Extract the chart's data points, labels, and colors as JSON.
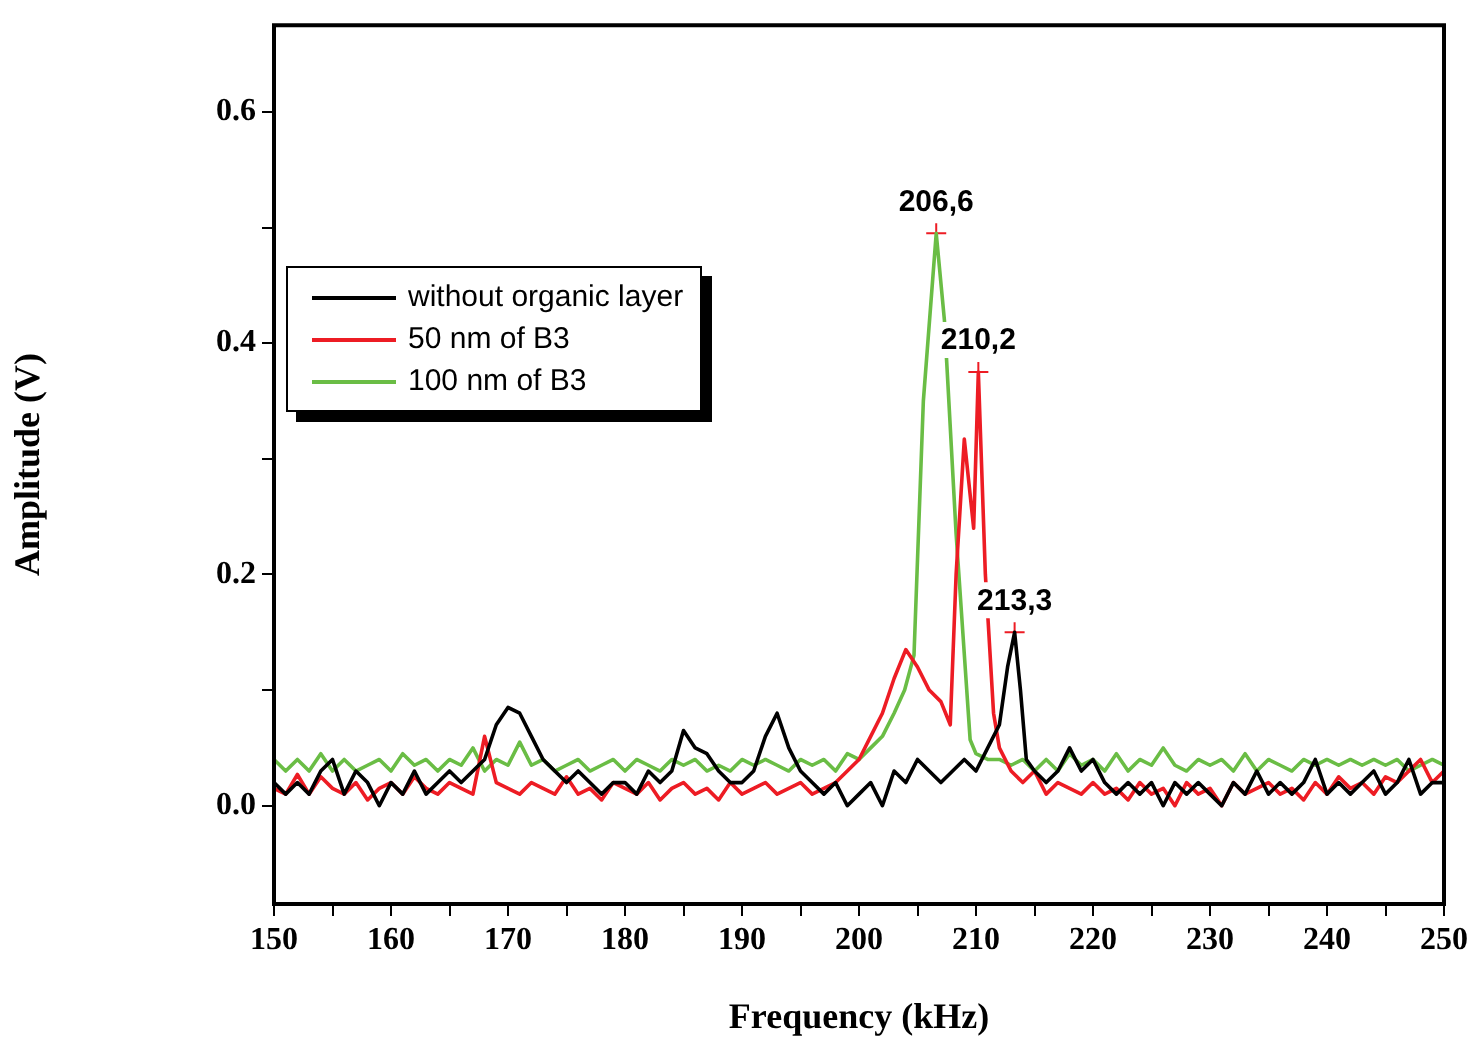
{
  "chart_data": {
    "type": "line",
    "xlabel": "Frequency (kHz)",
    "ylabel": "Amplitude (V)",
    "xlim": [
      150,
      250
    ],
    "xticks": [
      150,
      {
        "value": 155,
        "label": null
      },
      160,
      {
        "value": 165,
        "label": null
      },
      170,
      {
        "value": 175,
        "label": null
      },
      180,
      {
        "value": 185,
        "label": null
      },
      190,
      {
        "value": 195,
        "label": null
      },
      200,
      {
        "value": 205,
        "label": null
      },
      210,
      {
        "value": 215,
        "label": null
      },
      220,
      {
        "value": 225,
        "label": null
      },
      230,
      {
        "value": 235,
        "label": null
      },
      240,
      {
        "value": 245,
        "label": null
      },
      250
    ],
    "ylim": [
      -0.085,
      0.675
    ],
    "yticks": [
      {
        "value": 0,
        "label": "0.0"
      },
      {
        "value": 0.1,
        "label": null
      },
      {
        "value": 0.2,
        "label": "0.2"
      },
      {
        "value": 0.3,
        "label": null
      },
      {
        "value": 0.4,
        "label": "0.4"
      },
      {
        "value": 0.5,
        "label": null
      },
      {
        "value": 0.6,
        "label": "0.6"
      }
    ],
    "grid": false,
    "legend": "top left",
    "marker": "none",
    "line_style": "solid",
    "annotations": [
      {
        "text": "206,6",
        "x": 206.6,
        "y": 0.495
      },
      {
        "text": "210,2",
        "x": 210.2,
        "y": 0.375
      },
      {
        "text": "213,3",
        "x": 213.3,
        "y": 0.15
      }
    ],
    "series": [
      {
        "name": "without organic layer",
        "color": "#000000",
        "x": [
          150,
          151,
          152,
          153,
          154,
          155,
          156,
          157,
          158,
          159,
          160,
          161,
          162,
          163,
          164,
          165,
          166,
          167,
          168,
          169,
          170,
          171,
          172,
          173,
          174,
          175,
          176,
          177,
          178,
          179,
          180,
          181,
          182,
          183,
          184,
          185,
          186,
          187,
          188,
          189,
          190,
          191,
          192,
          193,
          194,
          195,
          196,
          197,
          198,
          199,
          200,
          201,
          202,
          203,
          204,
          205,
          206,
          207,
          208,
          209,
          210,
          211,
          212,
          212.7,
          213.3,
          213.8,
          214.3,
          215,
          216,
          217,
          218,
          219,
          220,
          221,
          222,
          223,
          224,
          225,
          226,
          227,
          228,
          229,
          230,
          231,
          232,
          233,
          234,
          235,
          236,
          237,
          238,
          239,
          240,
          241,
          242,
          243,
          244,
          245,
          246,
          247,
          248,
          249,
          250
        ],
        "values": [
          0.02,
          0.01,
          0.02,
          0.01,
          0.03,
          0.04,
          0.01,
          0.03,
          0.02,
          0.0,
          0.02,
          0.01,
          0.03,
          0.01,
          0.02,
          0.03,
          0.02,
          0.03,
          0.04,
          0.07,
          0.085,
          0.08,
          0.06,
          0.04,
          0.03,
          0.02,
          0.03,
          0.02,
          0.01,
          0.02,
          0.02,
          0.01,
          0.03,
          0.02,
          0.03,
          0.065,
          0.05,
          0.045,
          0.03,
          0.02,
          0.02,
          0.03,
          0.06,
          0.08,
          0.05,
          0.03,
          0.02,
          0.01,
          0.02,
          0.0,
          0.01,
          0.02,
          0.0,
          0.03,
          0.02,
          0.04,
          0.03,
          0.02,
          0.03,
          0.04,
          0.03,
          0.05,
          0.07,
          0.12,
          0.15,
          0.1,
          0.04,
          0.03,
          0.02,
          0.03,
          0.05,
          0.03,
          0.04,
          0.02,
          0.01,
          0.02,
          0.01,
          0.02,
          0.0,
          0.02,
          0.01,
          0.02,
          0.01,
          0.0,
          0.02,
          0.01,
          0.03,
          0.01,
          0.02,
          0.01,
          0.02,
          0.04,
          0.01,
          0.02,
          0.01,
          0.02,
          0.03,
          0.01,
          0.02,
          0.04,
          0.01,
          0.02,
          0.02
        ]
      },
      {
        "name": "50 nm of B3",
        "color": "#ed1c24",
        "x": [
          150,
          151,
          152,
          153,
          154,
          155,
          156,
          157,
          158,
          159,
          160,
          161,
          162,
          163,
          164,
          165,
          166,
          167,
          168,
          169,
          170,
          171,
          172,
          173,
          174,
          175,
          176,
          177,
          178,
          179,
          180,
          181,
          182,
          183,
          184,
          185,
          186,
          187,
          188,
          189,
          190,
          191,
          192,
          193,
          194,
          195,
          196,
          197,
          198,
          199,
          200,
          201,
          202,
          203,
          204,
          205,
          206,
          207,
          207.8,
          208.3,
          209,
          209.8,
          210.2,
          210.8,
          211.5,
          212,
          213,
          214,
          215,
          216,
          217,
          218,
          219,
          220,
          221,
          222,
          223,
          224,
          225,
          226,
          227,
          228,
          229,
          230,
          231,
          232,
          233,
          234,
          235,
          236,
          237,
          238,
          239,
          240,
          241,
          242,
          243,
          244,
          245,
          246,
          247,
          248,
          249,
          250
        ],
        "values": [
          0.015,
          0.01,
          0.027,
          0.01,
          0.025,
          0.015,
          0.01,
          0.02,
          0.005,
          0.015,
          0.02,
          0.01,
          0.025,
          0.015,
          0.01,
          0.02,
          0.015,
          0.01,
          0.06,
          0.02,
          0.015,
          0.01,
          0.02,
          0.015,
          0.01,
          0.025,
          0.01,
          0.015,
          0.005,
          0.02,
          0.015,
          0.01,
          0.02,
          0.005,
          0.015,
          0.02,
          0.01,
          0.015,
          0.005,
          0.02,
          0.01,
          0.015,
          0.02,
          0.01,
          0.015,
          0.02,
          0.01,
          0.015,
          0.02,
          0.03,
          0.04,
          0.06,
          0.08,
          0.11,
          0.135,
          0.12,
          0.1,
          0.09,
          0.07,
          0.2,
          0.317,
          0.24,
          0.375,
          0.2,
          0.08,
          0.05,
          0.03,
          0.02,
          0.03,
          0.01,
          0.02,
          0.015,
          0.01,
          0.02,
          0.01,
          0.015,
          0.005,
          0.02,
          0.01,
          0.015,
          0.0,
          0.02,
          0.01,
          0.015,
          0.0,
          0.02,
          0.01,
          0.015,
          0.02,
          0.01,
          0.015,
          0.005,
          0.02,
          0.01,
          0.025,
          0.015,
          0.02,
          0.01,
          0.025,
          0.02,
          0.03,
          0.04,
          0.02,
          0.03
        ]
      },
      {
        "name": "100 nm of B3",
        "color": "#6abd45",
        "x": [
          150,
          151,
          152,
          153,
          154,
          155,
          156,
          157,
          158,
          159,
          160,
          161,
          162,
          163,
          164,
          165,
          166,
          167,
          168,
          169,
          170,
          171,
          172,
          173,
          174,
          175,
          176,
          177,
          178,
          179,
          180,
          181,
          182,
          183,
          184,
          185,
          186,
          187,
          188,
          189,
          190,
          191,
          192,
          193,
          194,
          195,
          196,
          197,
          198,
          199,
          200,
          201,
          202,
          203,
          203.9,
          204.7,
          205.5,
          206.6,
          207.3,
          208.3,
          209.5,
          210,
          211,
          212,
          213,
          214,
          215,
          216,
          217,
          218,
          219,
          220,
          221,
          222,
          223,
          224,
          225,
          226,
          227,
          228,
          229,
          230,
          231,
          232,
          233,
          234,
          235,
          236,
          237,
          238,
          239,
          240,
          241,
          242,
          243,
          244,
          245,
          246,
          247,
          248,
          249,
          250
        ],
        "values": [
          0.04,
          0.03,
          0.04,
          0.03,
          0.045,
          0.03,
          0.04,
          0.03,
          0.035,
          0.04,
          0.03,
          0.045,
          0.035,
          0.04,
          0.03,
          0.04,
          0.035,
          0.05,
          0.03,
          0.04,
          0.035,
          0.055,
          0.035,
          0.04,
          0.03,
          0.035,
          0.04,
          0.03,
          0.035,
          0.04,
          0.03,
          0.04,
          0.035,
          0.03,
          0.04,
          0.035,
          0.04,
          0.03,
          0.035,
          0.03,
          0.04,
          0.035,
          0.04,
          0.035,
          0.03,
          0.04,
          0.035,
          0.04,
          0.03,
          0.045,
          0.04,
          0.05,
          0.06,
          0.08,
          0.1,
          0.13,
          0.35,
          0.495,
          0.42,
          0.235,
          0.057,
          0.045,
          0.04,
          0.04,
          0.035,
          0.04,
          0.03,
          0.04,
          0.03,
          0.045,
          0.035,
          0.04,
          0.03,
          0.045,
          0.03,
          0.04,
          0.035,
          0.05,
          0.035,
          0.03,
          0.04,
          0.035,
          0.04,
          0.03,
          0.045,
          0.03,
          0.04,
          0.035,
          0.03,
          0.04,
          0.035,
          0.04,
          0.035,
          0.04,
          0.035,
          0.04,
          0.035,
          0.04,
          0.03,
          0.035,
          0.04,
          0.035
        ]
      }
    ]
  }
}
